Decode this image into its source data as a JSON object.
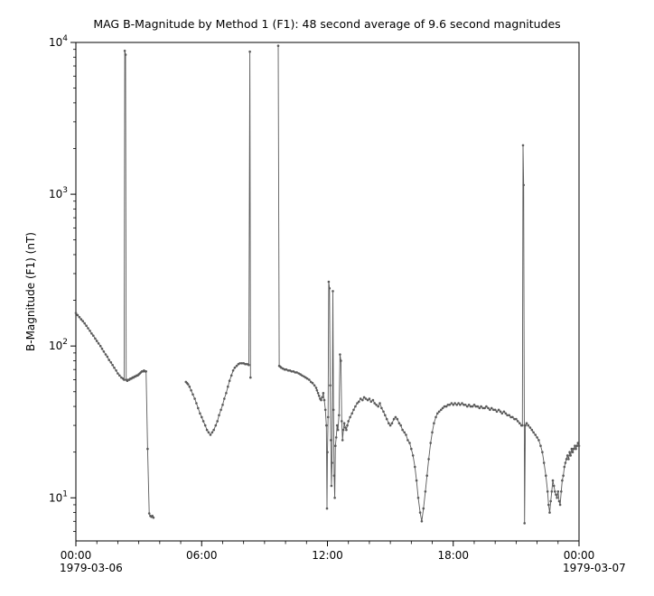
{
  "title": "MAG  B-Magnitude by Method 1 (F1): 48 second average of 9.6 second magnitudes",
  "chart_data": {
    "type": "line",
    "title": "MAG  B-Magnitude by Method 1 (F1): 48 second average of 9.6 second magnitudes",
    "xlabel": "",
    "ylabel": "B-Magnitude (F1) (nT)",
    "yscale": "log",
    "xlim": [
      0,
      24
    ],
    "ylim": [
      5.2,
      10000
    ],
    "x_unit": "hours since 1979-03-06 00:00",
    "grid": false,
    "legend": false,
    "marker": "dot",
    "series_color": "#5a5a5a",
    "x_major_ticks": [
      {
        "value": 0,
        "label": "00:00"
      },
      {
        "value": 6,
        "label": "06:00"
      },
      {
        "value": 12,
        "label": "12:00"
      },
      {
        "value": 18,
        "label": "18:00"
      },
      {
        "value": 24,
        "label": "00:00"
      }
    ],
    "x_date_labels": [
      {
        "value": 0,
        "label": "1979-03-06"
      },
      {
        "value": 24,
        "label": "1979-03-07"
      }
    ],
    "y_major_ticks": [
      {
        "value": 10,
        "base": "10",
        "exp": "1"
      },
      {
        "value": 100,
        "base": "10",
        "exp": "2"
      },
      {
        "value": 1000,
        "base": "10",
        "exp": "3"
      },
      {
        "value": 10000,
        "base": "10",
        "exp": "4"
      }
    ],
    "segments": [
      [
        [
          0.0,
          165
        ],
        [
          0.08,
          160
        ],
        [
          0.17,
          155
        ],
        [
          0.25,
          150
        ],
        [
          0.33,
          146
        ],
        [
          0.42,
          141
        ],
        [
          0.5,
          136
        ],
        [
          0.58,
          131
        ],
        [
          0.67,
          126
        ],
        [
          0.75,
          121
        ],
        [
          0.83,
          117
        ],
        [
          0.92,
          112
        ],
        [
          1.0,
          108
        ],
        [
          1.08,
          104
        ],
        [
          1.17,
          100
        ],
        [
          1.25,
          96
        ],
        [
          1.33,
          92
        ],
        [
          1.42,
          88
        ],
        [
          1.5,
          85
        ],
        [
          1.58,
          81
        ],
        [
          1.67,
          78
        ],
        [
          1.75,
          75
        ],
        [
          1.83,
          72
        ],
        [
          1.92,
          69
        ],
        [
          2.0,
          66
        ],
        [
          2.08,
          64
        ],
        [
          2.17,
          62
        ],
        [
          2.25,
          61
        ],
        [
          2.3,
          60
        ],
        [
          2.33,
          8800
        ],
        [
          2.37,
          8300
        ],
        [
          2.4,
          60
        ],
        [
          2.45,
          59
        ],
        [
          2.5,
          60
        ],
        [
          2.55,
          60
        ],
        [
          2.6,
          61
        ],
        [
          2.65,
          61
        ],
        [
          2.7,
          62
        ],
        [
          2.75,
          62
        ],
        [
          2.8,
          63
        ],
        [
          2.85,
          63
        ],
        [
          2.9,
          64
        ],
        [
          2.95,
          64
        ],
        [
          3.0,
          65
        ],
        [
          3.05,
          66
        ],
        [
          3.1,
          67
        ],
        [
          3.15,
          68
        ],
        [
          3.2,
          68
        ],
        [
          3.25,
          69
        ],
        [
          3.3,
          68
        ],
        [
          3.35,
          68
        ],
        [
          3.42,
          21
        ],
        [
          3.5,
          7.9
        ],
        [
          3.55,
          7.6
        ],
        [
          3.6,
          7.5
        ],
        [
          3.65,
          7.6
        ],
        [
          3.7,
          7.4
        ]
      ],
      [
        [
          5.25,
          58
        ],
        [
          5.3,
          57
        ],
        [
          5.35,
          56
        ],
        [
          5.42,
          54
        ],
        [
          5.5,
          51
        ],
        [
          5.58,
          48
        ],
        [
          5.67,
          45
        ],
        [
          5.75,
          42
        ],
        [
          5.83,
          39
        ],
        [
          5.92,
          36
        ],
        [
          6.0,
          34
        ],
        [
          6.08,
          32
        ],
        [
          6.17,
          30
        ],
        [
          6.25,
          28
        ],
        [
          6.33,
          27
        ],
        [
          6.42,
          26
        ],
        [
          6.5,
          27
        ],
        [
          6.58,
          28
        ],
        [
          6.67,
          30
        ],
        [
          6.75,
          32
        ],
        [
          6.83,
          35
        ],
        [
          6.92,
          38
        ],
        [
          7.0,
          41
        ],
        [
          7.08,
          45
        ],
        [
          7.17,
          49
        ],
        [
          7.25,
          54
        ],
        [
          7.33,
          59
        ],
        [
          7.42,
          64
        ],
        [
          7.5,
          69
        ],
        [
          7.58,
          72
        ],
        [
          7.67,
          74
        ],
        [
          7.75,
          76
        ],
        [
          7.83,
          77
        ],
        [
          7.92,
          77
        ],
        [
          8.0,
          77
        ],
        [
          8.08,
          76
        ],
        [
          8.17,
          76
        ],
        [
          8.25,
          75
        ],
        [
          8.3,
          8700
        ],
        [
          8.33,
          62
        ]
      ],
      [
        [
          9.65,
          9500
        ],
        [
          9.7,
          74
        ],
        [
          9.75,
          73
        ],
        [
          9.8,
          72
        ],
        [
          9.88,
          71
        ],
        [
          9.96,
          70
        ],
        [
          10.04,
          70
        ],
        [
          10.13,
          69
        ],
        [
          10.21,
          69
        ],
        [
          10.29,
          68
        ],
        [
          10.38,
          68
        ],
        [
          10.46,
          67
        ],
        [
          10.54,
          67
        ],
        [
          10.63,
          66
        ],
        [
          10.71,
          65
        ],
        [
          10.79,
          64
        ],
        [
          10.88,
          63
        ],
        [
          10.96,
          62
        ],
        [
          11.04,
          61
        ],
        [
          11.13,
          60
        ],
        [
          11.21,
          58
        ],
        [
          11.29,
          57
        ],
        [
          11.38,
          55
        ],
        [
          11.46,
          53
        ],
        [
          11.5,
          51
        ],
        [
          11.55,
          49
        ],
        [
          11.6,
          47
        ],
        [
          11.65,
          45
        ],
        [
          11.7,
          44
        ],
        [
          11.75,
          46
        ],
        [
          11.8,
          49
        ],
        [
          11.85,
          44
        ],
        [
          11.9,
          38
        ],
        [
          11.95,
          30
        ],
        [
          11.98,
          8.5
        ],
        [
          12.0,
          20
        ],
        [
          12.03,
          34
        ],
        [
          12.06,
          265
        ],
        [
          12.1,
          240
        ],
        [
          12.13,
          55
        ],
        [
          12.16,
          24
        ],
        [
          12.19,
          12
        ],
        [
          12.22,
          17
        ],
        [
          12.26,
          230
        ],
        [
          12.29,
          38
        ],
        [
          12.32,
          14
        ],
        [
          12.35,
          10
        ],
        [
          12.38,
          22
        ],
        [
          12.42,
          25
        ],
        [
          12.46,
          30
        ],
        [
          12.5,
          28
        ],
        [
          12.55,
          35
        ],
        [
          12.6,
          88
        ],
        [
          12.64,
          80
        ],
        [
          12.68,
          32
        ],
        [
          12.72,
          24
        ],
        [
          12.76,
          28
        ],
        [
          12.8,
          31
        ],
        [
          12.85,
          29
        ],
        [
          12.9,
          28
        ],
        [
          12.95,
          30
        ],
        [
          13.0,
          32
        ],
        [
          13.08,
          34
        ],
        [
          13.17,
          36
        ],
        [
          13.25,
          38
        ],
        [
          13.33,
          40
        ],
        [
          13.42,
          42
        ],
        [
          13.5,
          43
        ],
        [
          13.58,
          45
        ],
        [
          13.67,
          44
        ],
        [
          13.75,
          46
        ],
        [
          13.83,
          45
        ],
        [
          13.92,
          44
        ],
        [
          14.0,
          45
        ],
        [
          14.08,
          43
        ],
        [
          14.17,
          44
        ],
        [
          14.25,
          42
        ],
        [
          14.33,
          41
        ],
        [
          14.42,
          40
        ],
        [
          14.5,
          42
        ],
        [
          14.58,
          39
        ],
        [
          14.67,
          37
        ],
        [
          14.75,
          35
        ],
        [
          14.83,
          33
        ],
        [
          14.92,
          31
        ],
        [
          15.0,
          30
        ],
        [
          15.08,
          31
        ],
        [
          15.17,
          33
        ],
        [
          15.25,
          34
        ],
        [
          15.33,
          33
        ],
        [
          15.42,
          31
        ],
        [
          15.5,
          30
        ],
        [
          15.58,
          28
        ],
        [
          15.67,
          27
        ],
        [
          15.75,
          26
        ],
        [
          15.83,
          24
        ],
        [
          15.92,
          23
        ],
        [
          16.0,
          21
        ],
        [
          16.08,
          19
        ],
        [
          16.17,
          16
        ],
        [
          16.25,
          13
        ],
        [
          16.33,
          10
        ],
        [
          16.42,
          8
        ],
        [
          16.5,
          7
        ],
        [
          16.58,
          8.5
        ],
        [
          16.67,
          11
        ],
        [
          16.75,
          14
        ],
        [
          16.83,
          18
        ],
        [
          16.92,
          23
        ],
        [
          17.0,
          27
        ],
        [
          17.08,
          31
        ],
        [
          17.17,
          34
        ],
        [
          17.25,
          36
        ],
        [
          17.33,
          37
        ],
        [
          17.42,
          38
        ],
        [
          17.5,
          39
        ],
        [
          17.58,
          40
        ],
        [
          17.67,
          40
        ],
        [
          17.75,
          41
        ],
        [
          17.83,
          41
        ],
        [
          17.92,
          42
        ],
        [
          18.0,
          41
        ],
        [
          18.08,
          42
        ],
        [
          18.17,
          41
        ],
        [
          18.25,
          42
        ],
        [
          18.33,
          41
        ],
        [
          18.42,
          42
        ],
        [
          18.5,
          41
        ],
        [
          18.58,
          41
        ],
        [
          18.67,
          40
        ],
        [
          18.75,
          41
        ],
        [
          18.83,
          40
        ],
        [
          18.92,
          40
        ],
        [
          19.0,
          41
        ],
        [
          19.08,
          40
        ],
        [
          19.17,
          40
        ],
        [
          19.25,
          39
        ],
        [
          19.33,
          40
        ],
        [
          19.42,
          39
        ],
        [
          19.5,
          39
        ],
        [
          19.58,
          40
        ],
        [
          19.67,
          39
        ],
        [
          19.75,
          38
        ],
        [
          19.83,
          39
        ],
        [
          19.92,
          38
        ],
        [
          20.0,
          38
        ],
        [
          20.08,
          37
        ],
        [
          20.17,
          38
        ],
        [
          20.25,
          37
        ],
        [
          20.33,
          36
        ],
        [
          20.42,
          37
        ],
        [
          20.5,
          36
        ],
        [
          20.58,
          35
        ],
        [
          20.67,
          35
        ],
        [
          20.75,
          34
        ],
        [
          20.83,
          34
        ],
        [
          20.92,
          33
        ],
        [
          21.0,
          33
        ],
        [
          21.08,
          32
        ],
        [
          21.17,
          31
        ],
        [
          21.25,
          30
        ],
        [
          21.3,
          30
        ],
        [
          21.33,
          2100
        ],
        [
          21.36,
          1150
        ],
        [
          21.4,
          6.8
        ],
        [
          21.44,
          30
        ],
        [
          21.5,
          31
        ],
        [
          21.58,
          30
        ],
        [
          21.67,
          29
        ],
        [
          21.75,
          28
        ],
        [
          21.83,
          27
        ],
        [
          21.92,
          26
        ],
        [
          22.0,
          25
        ],
        [
          22.08,
          24
        ],
        [
          22.17,
          22
        ],
        [
          22.25,
          20
        ],
        [
          22.33,
          17
        ],
        [
          22.42,
          14
        ],
        [
          22.5,
          11
        ],
        [
          22.55,
          9
        ],
        [
          22.6,
          8
        ],
        [
          22.65,
          9.5
        ],
        [
          22.7,
          11
        ],
        [
          22.75,
          13
        ],
        [
          22.8,
          12
        ],
        [
          22.85,
          11
        ],
        [
          22.9,
          10.5
        ],
        [
          22.95,
          10
        ],
        [
          23.0,
          11
        ],
        [
          23.05,
          9.5
        ],
        [
          23.1,
          9
        ],
        [
          23.15,
          11
        ],
        [
          23.2,
          13
        ],
        [
          23.25,
          14
        ],
        [
          23.3,
          16
        ],
        [
          23.35,
          17
        ],
        [
          23.4,
          18
        ],
        [
          23.45,
          19
        ],
        [
          23.5,
          18
        ],
        [
          23.55,
          20
        ],
        [
          23.6,
          19
        ],
        [
          23.65,
          21
        ],
        [
          23.7,
          20
        ],
        [
          23.75,
          21
        ],
        [
          23.8,
          22
        ],
        [
          23.85,
          21
        ],
        [
          23.9,
          22
        ],
        [
          23.95,
          23
        ],
        [
          24.0,
          22
        ]
      ]
    ]
  }
}
